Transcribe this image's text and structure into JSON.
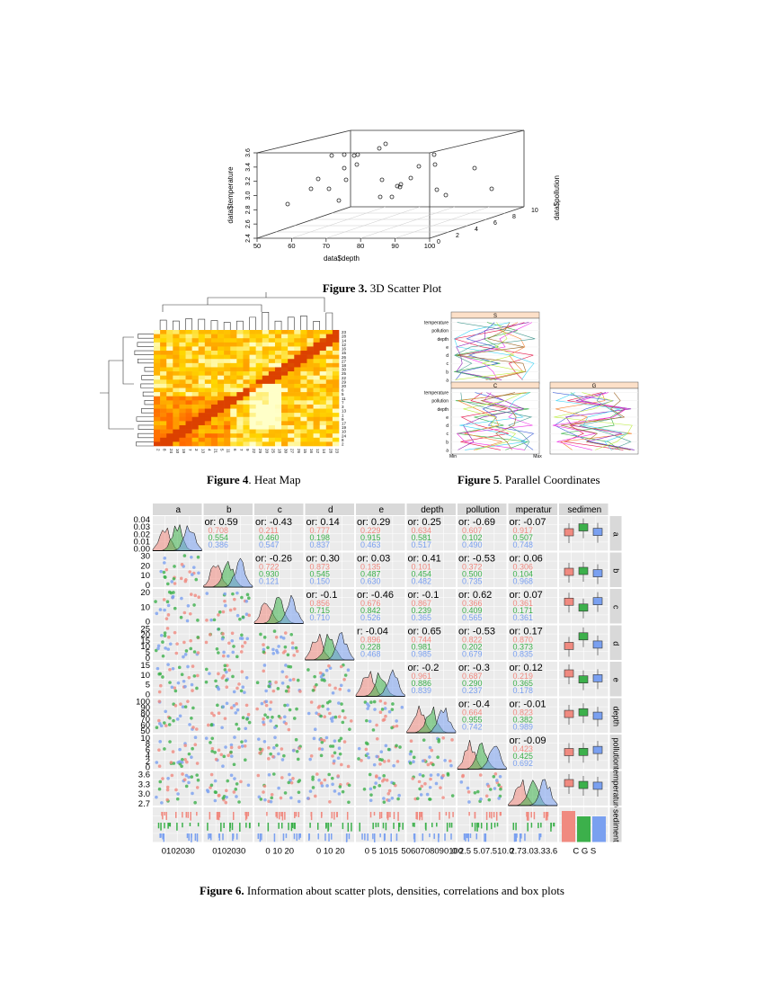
{
  "figure3": {
    "label": "Figure 3.",
    "text": " 3D Scatter Plot",
    "chart_data": {
      "type": "scatter",
      "xlabel": "data$depth",
      "ylabel": "data$pollution",
      "zlabel": "data$temperature",
      "x_ticks": [
        "50",
        "60",
        "70",
        "80",
        "90",
        "100"
      ],
      "y_ticks": [
        "0",
        "2",
        "4",
        "6",
        "8",
        "10"
      ],
      "z_ticks": [
        "2.4",
        "2.6",
        "2.8",
        "3.0",
        "3.2",
        "3.4",
        "3.6"
      ],
      "xlim": [
        50,
        100
      ],
      "ylim": [
        0,
        10
      ],
      "zlim": [
        2.4,
        3.6
      ]
    }
  },
  "figure4": {
    "label": "Figure 4",
    "text": ". Heat Map",
    "chart_data": {
      "type": "heatmap",
      "row_labels": [
        "23",
        "28",
        "14",
        "12",
        "16",
        "15",
        "26",
        "27",
        "18",
        "30",
        "25",
        "22",
        "29",
        "20",
        "6",
        "5",
        "11",
        "7",
        "3",
        "13",
        "1",
        "9",
        "17",
        "19",
        "10",
        "24",
        "8",
        "2"
      ],
      "col_labels": [
        "2",
        "8",
        "24",
        "10",
        "19",
        "7",
        "3",
        "13",
        "4",
        "21",
        "5",
        "11",
        "6",
        "7",
        "9",
        "22",
        "29",
        "20",
        "25",
        "18",
        "30",
        "27",
        "26",
        "15",
        "16",
        "12",
        "14",
        "28",
        "23"
      ]
    }
  },
  "figure5": {
    "label": "Figure 5",
    "text": ". Parallel Coordinates",
    "chart_data": {
      "type": "line",
      "panels": [
        "S",
        "C",
        "G"
      ],
      "variables": [
        "a",
        "b",
        "c",
        "d",
        "e",
        "depth",
        "pollution",
        "temperature"
      ],
      "x_ticks": [
        "Min",
        "Max"
      ]
    }
  },
  "figure6": {
    "label": "Figure 6.",
    "text": " Information about scatter plots, densities, correlations and box plots",
    "chart_data": {
      "type": "scatter",
      "variables": [
        "a",
        "b",
        "c",
        "d",
        "e",
        "depth",
        "pollution",
        "temperature",
        "sediment"
      ],
      "row_strip": [
        "a",
        "b",
        "c",
        "d",
        "e",
        "depth",
        "pollution",
        "temperature",
        "sediment"
      ],
      "col_strip": [
        "a",
        "b",
        "c",
        "d",
        "e",
        "depth",
        "pollution",
        "mperatur",
        "sedimen"
      ],
      "y_ticks": [
        [
          "0.04",
          "0.03",
          "0.02",
          "0.01",
          "0.00"
        ],
        [
          "30",
          "20",
          "10",
          "0"
        ],
        [
          "20",
          "10",
          "0"
        ],
        [
          "25",
          "20",
          "15",
          "10",
          "5",
          "0"
        ],
        [
          "15",
          "10",
          "5",
          "0"
        ],
        [
          "100",
          "90",
          "80",
          "70",
          "60",
          "50"
        ],
        [
          "10",
          "8",
          "6",
          "4",
          "2",
          "0"
        ],
        [
          "3.6",
          "3.3",
          "3.0",
          "2.7"
        ],
        []
      ],
      "x_tick_text": [
        "0102030",
        "0102030",
        "0 10 20",
        "0 10 20",
        "0 5 1015",
        "5060708090100",
        "0 2.5 5.07.510.0",
        "2.73.03.33.6",
        "C G S"
      ],
      "corr": [
        [
          "or: 0.59",
          "or: -0.43",
          "or: 0.14",
          "or: 0.29",
          "or: 0.25",
          "or: -0.69",
          "or: -0.07"
        ],
        [
          "or: -0.26",
          "or: 0.30",
          "or: 0.03",
          "or: 0.41",
          "or: -0.53",
          "or: 0.06"
        ],
        [
          "or: -0.1",
          "or: -0.46",
          "or: -0.1",
          "or: 0.62",
          "or: 0.07"
        ],
        [
          "r: -0.04",
          "or: 0.65",
          "or: -0.53",
          "or: 0.17"
        ],
        [
          "or: -0.2",
          "or: -0.3",
          "or: 0.12"
        ],
        [
          "or: -0.4",
          "or: -0.01"
        ],
        [
          "or: -0.09"
        ]
      ],
      "group_colors": {
        "C": "#f08a80",
        "G": "#3cb04b",
        "S": "#7aa0f0"
      },
      "groups": [
        "C",
        "G",
        "S"
      ]
    }
  }
}
